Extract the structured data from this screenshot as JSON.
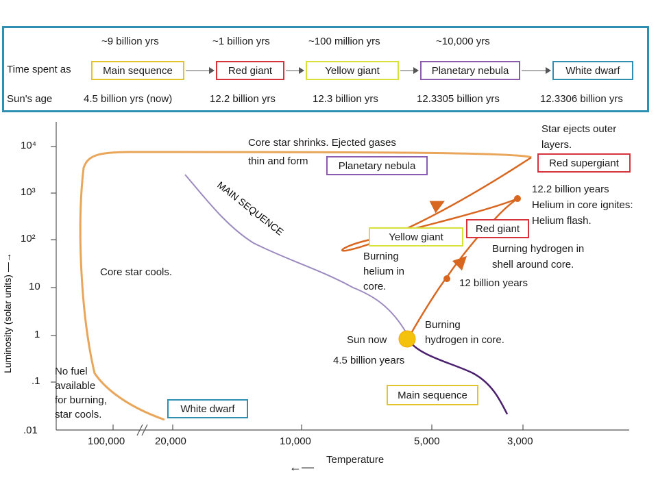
{
  "top_panel": {
    "row_time_label": "Time spent as",
    "row_age_label": "Sun's age",
    "stages": [
      {
        "duration": "~9 billion yrs",
        "name": "Main sequence",
        "age": "4.5 billion yrs (now)",
        "color": "#e3c42a"
      },
      {
        "duration": "~1 billion yrs",
        "name": "Red giant",
        "age": "12.2 billion yrs",
        "color": "#d6333c"
      },
      {
        "duration": "~100 million yrs",
        "name": "Yellow giant",
        "age": "12.3 billion yrs",
        "color": "#d8e03a"
      },
      {
        "duration": "~10,000 yrs",
        "name": "Planetary nebula",
        "age": "12.3305 billion yrs",
        "color": "#8b5bb0"
      },
      {
        "duration": "",
        "name": "White dwarf",
        "age": "12.3306 billion yrs",
        "color": "#2e8fb0"
      }
    ]
  },
  "axes": {
    "ylabel": "Luminosity (solar units) —→",
    "xlabel": "Temperature",
    "y_ticks": [
      "10⁴",
      "10³",
      "10²",
      "10",
      "1",
      ".1",
      ".01"
    ],
    "x_ticks": [
      "100,000",
      "20,000",
      "10,000",
      "5,000",
      "3,000"
    ]
  },
  "annotations": {
    "core_shrinks_1": "Core star shrinks. Ejected gases",
    "core_shrinks_2": "thin and form",
    "planetary_nebula_box": "Planetary nebula",
    "star_ejects_1": "Star ejects outer",
    "star_ejects_2": "layers.",
    "red_supergiant_box": "Red supergiant",
    "helium_1": "12.2 billion years",
    "helium_2": "Helium in core ignites:",
    "helium_3": "Helium flash.",
    "red_giant_box": "Red giant",
    "yellow_giant_box": "Yellow giant",
    "burning_shell_1": "Burning hydrogen in",
    "burning_shell_2": "shell around core.",
    "burning_helium_1": "Burning",
    "burning_helium_2": "helium in",
    "burning_helium_3": "core.",
    "twelve_billion": "12 billion years",
    "main_sequence_curve": "MAIN SEQUENCE",
    "core_cools": "Core star cools.",
    "burning_core_1": "Burning",
    "burning_core_2": "hydrogen in core.",
    "sun_now": "Sun now",
    "sun_age": "4.5 billion years",
    "main_sequence_box": "Main sequence",
    "no_fuel_1": "No fuel",
    "no_fuel_2": "available",
    "no_fuel_3": "for burning,",
    "no_fuel_4": "star cools.",
    "white_dwarf_box": "White dwarf"
  },
  "colors": {
    "orange_track": "#e9a65a",
    "red_track": "#d9661f",
    "main_sequence_line": "#9a8ac0",
    "lower_ms_line": "#4a1f6e",
    "sun": "#f4c20d"
  }
}
